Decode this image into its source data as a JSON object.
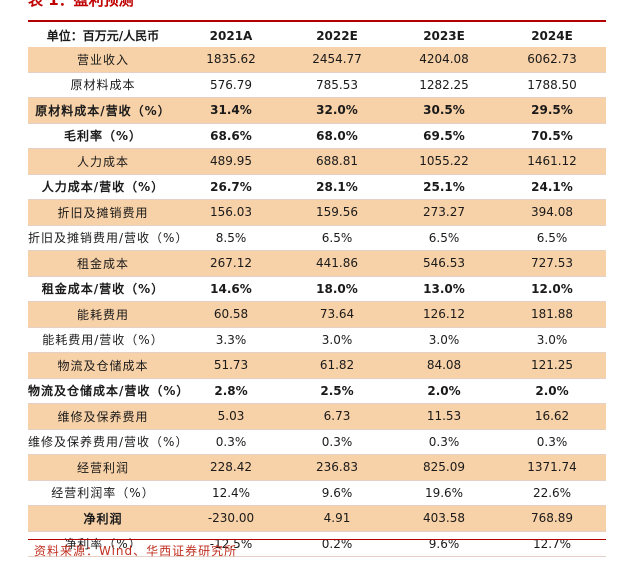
{
  "title": "表 1：盈利预测",
  "table": {
    "headers": [
      "单位：百万元/人民币",
      "2021A",
      "2022E",
      "2023E",
      "2024E"
    ],
    "rows": [
      {
        "label": "营业收入",
        "values": [
          "1835.62",
          "2454.77",
          "4204.08",
          "6062.73"
        ]
      },
      {
        "label": "原材料成本",
        "values": [
          "576.79",
          "785.53",
          "1282.25",
          "1788.50"
        ]
      },
      {
        "label": "原材料成本/营收（%）",
        "values": [
          "31.4%",
          "32.0%",
          "30.5%",
          "29.5%"
        ]
      },
      {
        "label": "毛利率（%）",
        "values": [
          "68.6%",
          "68.0%",
          "69.5%",
          "70.5%"
        ]
      },
      {
        "label": "人力成本",
        "values": [
          "489.95",
          "688.81",
          "1055.22",
          "1461.12"
        ]
      },
      {
        "label": "人力成本/营收（%）",
        "values": [
          "26.7%",
          "28.1%",
          "25.1%",
          "24.1%"
        ]
      },
      {
        "label": "折旧及摊销费用",
        "values": [
          "156.03",
          "159.56",
          "273.27",
          "394.08"
        ]
      },
      {
        "label": "折旧及摊销费用/营收（%）",
        "values": [
          "8.5%",
          "6.5%",
          "6.5%",
          "6.5%"
        ]
      },
      {
        "label": "租金成本",
        "values": [
          "267.12",
          "441.86",
          "546.53",
          "727.53"
        ]
      },
      {
        "label": "租金成本/营收（%）",
        "values": [
          "14.6%",
          "18.0%",
          "13.0%",
          "12.0%"
        ]
      },
      {
        "label": "能耗费用",
        "values": [
          "60.58",
          "73.64",
          "126.12",
          "181.88"
        ]
      },
      {
        "label": "能耗费用/营收（%）",
        "values": [
          "3.3%",
          "3.0%",
          "3.0%",
          "3.0%"
        ]
      },
      {
        "label": "物流及仓储成本",
        "values": [
          "51.73",
          "61.82",
          "84.08",
          "121.25"
        ]
      },
      {
        "label": "物流及仓储成本/营收（%）",
        "values": [
          "2.8%",
          "2.5%",
          "2.0%",
          "2.0%"
        ]
      },
      {
        "label": "维修及保养费用",
        "values": [
          "5.03",
          "6.73",
          "11.53",
          "16.62"
        ]
      },
      {
        "label": "维修及保养费用/营收（%）",
        "values": [
          "0.3%",
          "0.3%",
          "0.3%",
          "0.3%"
        ]
      },
      {
        "label": "经营利润",
        "values": [
          "228.42",
          "236.83",
          "825.09",
          "1371.74"
        ]
      },
      {
        "label": "经营利润率（%）",
        "values": [
          "12.4%",
          "9.6%",
          "19.6%",
          "22.6%"
        ]
      },
      {
        "label": "净利润",
        "values": [
          "-230.00",
          "4.91",
          "403.58",
          "768.89"
        ]
      },
      {
        "label": "净利率（%）",
        "values": [
          "-12.5%",
          "0.2%",
          "9.6%",
          "12.7%"
        ]
      }
    ]
  },
  "source": "资料来源：Wind、华西证券研究所",
  "colors": {
    "shade": "#f7d1a7",
    "rule": "#b20000",
    "source_text": "#c03020"
  }
}
